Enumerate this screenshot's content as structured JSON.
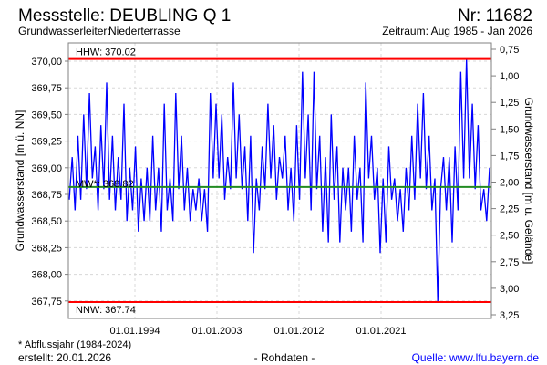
{
  "header": {
    "title": "Messstelle: DEUBLING Q 1",
    "number": "Nr: 11682",
    "aquifer_label": "Grundwasserleiter:",
    "aquifer_value": "Niederterrasse",
    "period": "Zeitraum: Aug 1985 - Jan 2026"
  },
  "footer": {
    "note": "* Abflussjahr (1984-2024)",
    "created": "erstellt:  20.01.2026",
    "data_type": "- Rohdaten -",
    "source": "Quelle: www.lfu.bayern.de"
  },
  "colors": {
    "series": "#0000ff",
    "limits": "#ff0000",
    "mean": "#228b22",
    "source_link": "#0000ff"
  },
  "chart_data": {
    "type": "line",
    "title": "Messstelle: DEUBLING Q 1",
    "ylabel": "Grundwasserstand [m ü. NN]",
    "y2label": "Grundwasserstand [m u. Gelände]",
    "ylim": [
      367.57,
      370.26
    ],
    "yticks": [
      "367,75",
      "368,00",
      "368,25",
      "368,50",
      "368,75",
      "369,00",
      "369,25",
      "369,50",
      "369,75",
      "370,00"
    ],
    "y2ticks": [
      "0,75",
      "1,00",
      "1,25",
      "1,50",
      "1,75",
      "2,00",
      "2,25",
      "2,50",
      "2,75",
      "3,00",
      "3,25"
    ],
    "xticks": [
      "01.01.1994",
      "01.01.2003",
      "01.01.2012",
      "01.01.2021"
    ],
    "xrange": [
      "Aug 1985",
      "Jan 2026"
    ],
    "grid": true,
    "reference_lines": [
      {
        "name": "HHW",
        "label": "HHW: 370.02",
        "value": 370.02
      },
      {
        "name": "MW",
        "label": "MW*: 368.82",
        "value": 368.82
      },
      {
        "name": "NNW",
        "label": "NNW: 367.74",
        "value": 367.74
      }
    ],
    "series": [
      {
        "name": "Grundwasserstand (approx.)",
        "values": [
          368.7,
          369.1,
          368.6,
          369.3,
          368.7,
          369.5,
          368.8,
          369.7,
          368.9,
          369.2,
          368.6,
          369.4,
          368.8,
          369.8,
          368.7,
          369.3,
          368.6,
          369.1,
          368.7,
          369.6,
          368.5,
          369.0,
          368.6,
          369.2,
          368.4,
          368.9,
          368.5,
          369.0,
          368.5,
          369.3,
          368.6,
          369.0,
          368.4,
          369.6,
          368.6,
          368.9,
          368.5,
          369.7,
          368.8,
          369.3,
          368.6,
          369.0,
          368.5,
          368.8,
          368.6,
          368.9,
          368.5,
          368.8,
          368.4,
          369.7,
          368.9,
          369.6,
          368.9,
          369.5,
          368.7,
          369.1,
          368.8,
          369.8,
          368.9,
          369.5,
          368.8,
          369.2,
          368.5,
          369.3,
          368.2,
          368.9,
          368.6,
          369.2,
          368.8,
          369.6,
          368.9,
          369.4,
          368.7,
          369.1,
          368.9,
          369.3,
          368.6,
          369.0,
          368.5,
          369.4,
          368.7,
          369.9,
          368.9,
          369.5,
          368.6,
          369.9,
          368.8,
          369.3,
          368.4,
          369.1,
          368.3,
          369.5,
          368.7,
          369.2,
          368.3,
          369.0,
          368.6,
          369.0,
          368.4,
          369.3,
          368.7,
          369.0,
          368.3,
          369.8,
          368.9,
          369.3,
          368.7,
          369.0,
          368.2,
          368.9,
          368.3,
          369.2,
          368.7,
          368.9,
          368.5,
          368.8,
          368.4,
          369.0,
          368.6,
          369.3,
          368.7,
          369.6,
          368.9,
          369.7,
          368.8,
          369.3,
          368.6,
          368.9,
          367.74,
          368.8,
          369.1,
          368.6,
          369.1,
          368.3,
          369.2,
          368.6,
          369.9,
          368.9,
          370.02,
          368.9,
          369.6,
          368.8,
          369.4,
          368.6,
          368.8,
          368.5,
          369.0
        ]
      }
    ]
  }
}
